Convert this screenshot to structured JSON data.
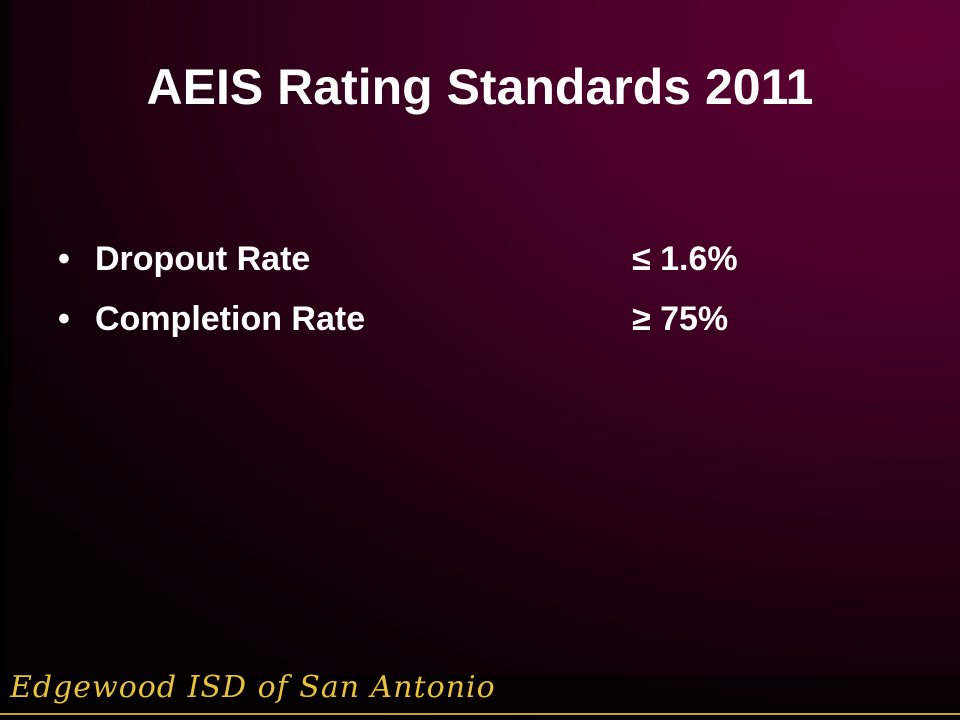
{
  "slide": {
    "title": "AEIS Rating Standards 2011",
    "bullets": [
      {
        "label": "Dropout Rate",
        "value": "≤ 1.6%"
      },
      {
        "label": "Completion Rate",
        "value": "≥ 75%"
      }
    ],
    "footer": "Edgewood ISD of San Antonio"
  }
}
